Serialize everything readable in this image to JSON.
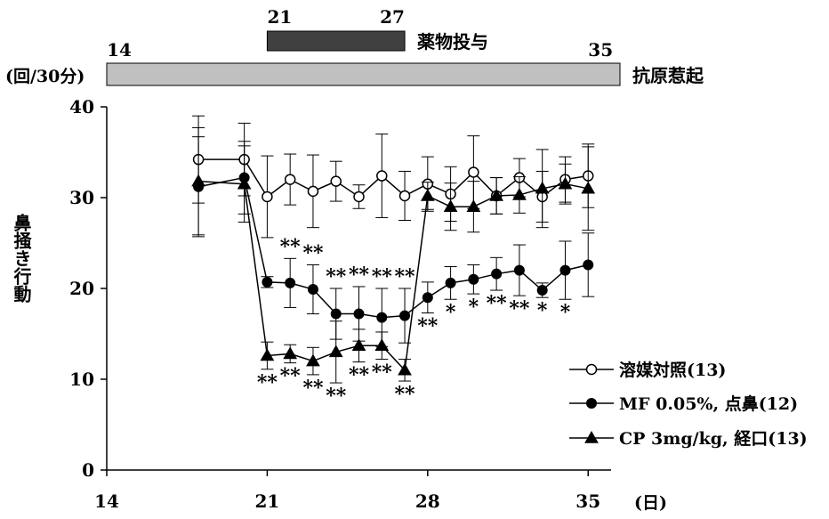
{
  "chart_data": {
    "type": "line",
    "ylabel": "鼻掻き行動",
    "yunit": "(回/30分)",
    "xunit": "(日)",
    "xlim": [
      14,
      36
    ],
    "ylim": [
      0,
      40
    ],
    "xticks": [
      14,
      21,
      28,
      35
    ],
    "yticks": [
      0,
      10,
      20,
      30,
      40
    ],
    "dosing": {
      "label": "薬物投与",
      "start": 21,
      "end": 27,
      "start_label": "21",
      "end_label": "27",
      "color": "#404040"
    },
    "challenge": {
      "label": "抗原惹起",
      "start": 14,
      "end": 35,
      "start_label": "14",
      "end_label": "35",
      "color": "#c0c0c0"
    },
    "series": [
      {
        "name": "溶媒対照(13)",
        "marker": "circle-open",
        "x": [
          18,
          20,
          21,
          22,
          23,
          24,
          25,
          26,
          27,
          28,
          29,
          30,
          31,
          32,
          33,
          34,
          35
        ],
        "y": [
          34.2,
          34.2,
          30.1,
          32.0,
          30.7,
          31.8,
          30.1,
          32.4,
          30.2,
          31.5,
          30.4,
          32.8,
          30.2,
          32.2,
          30.1,
          32.0,
          32.4
        ],
        "err": [
          4.8,
          4.0,
          4.5,
          2.8,
          4.0,
          2.2,
          1.3,
          4.6,
          2.7,
          3.0,
          3.0,
          4.0,
          2.0,
          2.1,
          2.8,
          2.5,
          3.5
        ],
        "sig": []
      },
      {
        "name": "MF 0.05%, 点鼻(12)",
        "marker": "circle-filled",
        "x": [
          18,
          20,
          21,
          22,
          23,
          24,
          25,
          26,
          27,
          28,
          29,
          30,
          31,
          32,
          33,
          34,
          35
        ],
        "y": [
          31.2,
          32.2,
          20.7,
          20.6,
          19.9,
          17.2,
          17.2,
          16.8,
          17.0,
          19.0,
          20.6,
          21.0,
          21.6,
          22.0,
          19.8,
          22.0,
          22.6
        ],
        "err": [
          5.5,
          4.0,
          0.6,
          2.7,
          2.7,
          2.8,
          3.0,
          3.2,
          3.0,
          1.7,
          1.8,
          1.6,
          1.8,
          2.8,
          0.8,
          3.2,
          3.5
        ],
        "sig": [
          {
            "x": 22,
            "text": "**",
            "pos": "above"
          },
          {
            "x": 23,
            "text": "**",
            "pos": "above"
          },
          {
            "x": 24,
            "text": "**",
            "pos": "above"
          },
          {
            "x": 25,
            "text": "**",
            "pos": "above"
          },
          {
            "x": 26,
            "text": "**",
            "pos": "above"
          },
          {
            "x": 27,
            "text": "**",
            "pos": "above"
          },
          {
            "x": 28,
            "text": "**",
            "pos": "below"
          },
          {
            "x": 29,
            "text": "*",
            "pos": "below"
          },
          {
            "x": 30,
            "text": "*",
            "pos": "below"
          },
          {
            "x": 31,
            "text": "**",
            "pos": "below"
          },
          {
            "x": 32,
            "text": "**",
            "pos": "below"
          },
          {
            "x": 33,
            "text": "*",
            "pos": "below"
          },
          {
            "x": 34,
            "text": "*",
            "pos": "below"
          }
        ]
      },
      {
        "name": "CP 3mg/kg, 経口(13)",
        "marker": "triangle-filled",
        "x": [
          18,
          20,
          21,
          22,
          23,
          24,
          25,
          26,
          27,
          28,
          29,
          30,
          31,
          32,
          33,
          34,
          35
        ],
        "y": [
          31.8,
          31.5,
          12.6,
          12.8,
          12.0,
          13.0,
          13.7,
          13.7,
          11.0,
          30.2,
          29.0,
          29.0,
          30.2,
          30.3,
          31.0,
          31.5,
          31.0
        ],
        "err": [
          5.9,
          4.2,
          1.5,
          1.0,
          1.5,
          3.4,
          1.8,
          1.5,
          1.2,
          1.5,
          2.6,
          2.8,
          2.0,
          2.0,
          4.3,
          2.2,
          4.6
        ],
        "sig": [
          {
            "x": 21,
            "text": "**",
            "pos": "below"
          },
          {
            "x": 22,
            "text": "**",
            "pos": "below"
          },
          {
            "x": 23,
            "text": "**",
            "pos": "below"
          },
          {
            "x": 24,
            "text": "**",
            "pos": "below"
          },
          {
            "x": 25,
            "text": "**",
            "pos": "below"
          },
          {
            "x": 26,
            "text": "**",
            "pos": "below"
          },
          {
            "x": 27,
            "text": "**",
            "pos": "below"
          }
        ]
      }
    ],
    "legend_position": "bottom-right"
  }
}
